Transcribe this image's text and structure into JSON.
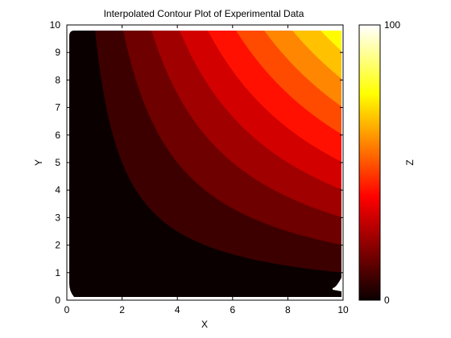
{
  "chart_data": {
    "type": "contour",
    "title": "Interpolated Contour Plot of Experimental Data",
    "xlabel": "X",
    "ylabel": "Y",
    "zlabel": "Z",
    "xlim": [
      0,
      10
    ],
    "ylim": [
      0,
      10
    ],
    "xticks": [
      0,
      2,
      4,
      6,
      8,
      10
    ],
    "yticks": [
      0,
      1,
      2,
      3,
      4,
      5,
      6,
      7,
      8,
      9,
      10
    ],
    "colorbar": {
      "range": [
        0,
        100
      ],
      "ticks": [
        0,
        100
      ],
      "colormap": "hot"
    },
    "function": "z = x * y",
    "contour_levels": [
      0,
      10,
      20,
      30,
      40,
      50,
      60,
      70,
      80,
      90,
      100
    ],
    "colors": {
      "band_0": "#0b0000",
      "band_1": "#3d0000",
      "band_2": "#6e0000",
      "band_3": "#a00000",
      "band_4": "#d30000",
      "band_5": "#ff1000",
      "band_6": "#ff4b00",
      "band_7": "#ff8600",
      "band_8": "#ffc100",
      "band_9": "#fffb00",
      "band_10": "#ffff80"
    }
  }
}
